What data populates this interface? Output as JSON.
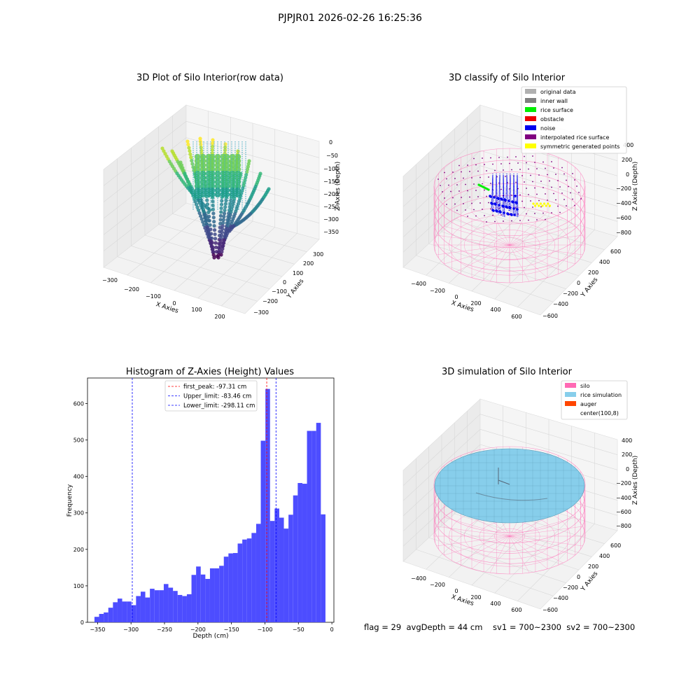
{
  "figure": {
    "suptitle": "PJPJR01 2026-02-26 16:25:36",
    "status_text": "flag = 29  avgDepth = 44 cm    sv1 = 700~2300  sv2 = 700~2300"
  },
  "chart_data": [
    {
      "type": "scatter",
      "panel": "top-left",
      "title": "3D Plot of Silo Interior(row data)",
      "xlabel": "X Axies",
      "ylabel": "Y Axies",
      "zlabel": "Z Axies (Depth)",
      "x_ticks": [
        "−300",
        "−200",
        "−100",
        "0",
        "100",
        "200"
      ],
      "y_ticks": [
        "300",
        "200",
        "100",
        "0",
        "−100",
        "−200",
        "−300"
      ],
      "z_ticks": [
        "0",
        "−50",
        "−100",
        "−150",
        "−200",
        "−250",
        "−300",
        "−350"
      ],
      "colormap": "viridis",
      "grid": true
    },
    {
      "type": "scatter",
      "panel": "top-right",
      "title": "3D classify of Silo Interior",
      "xlabel": "X Axies",
      "ylabel": "Y Axies",
      "zlabel": "Z Axies (Depth)",
      "x_ticks": [
        "−400",
        "−200",
        "0",
        "200",
        "400",
        "600"
      ],
      "y_ticks": [
        "600",
        "400",
        "200",
        "0",
        "−200",
        "−400",
        "−600"
      ],
      "z_ticks": [
        "400",
        "200",
        "0",
        "−200",
        "−400",
        "−600",
        "−800"
      ],
      "legend_position": "top-right",
      "legend": [
        {
          "label": "original data",
          "color": "#b0b0b0"
        },
        {
          "label": "inner wall",
          "color": "#808080"
        },
        {
          "label": "rice surface",
          "color": "#00ee00"
        },
        {
          "label": "obstacle",
          "color": "#ee0000"
        },
        {
          "label": "noise",
          "color": "#0000ee"
        },
        {
          "label": "interpolated rice surface",
          "color": "#800080"
        },
        {
          "label": "symmetric generated points",
          "color": "#ffff00"
        }
      ],
      "grid": true
    },
    {
      "type": "bar",
      "panel": "bottom-left",
      "title": "Histogram of Z-Axies (Height) Values",
      "xlabel": "Depth (cm)",
      "ylabel": "Frequency",
      "xlim": [
        -365,
        3
      ],
      "ylim": [
        0,
        670
      ],
      "x_ticks": [
        -350,
        -300,
        -250,
        -200,
        -150,
        -100,
        -50,
        0
      ],
      "y_ticks": [
        0,
        100,
        200,
        300,
        400,
        500,
        600
      ],
      "bar_color": "#4d4dff",
      "bin_start": -354.6,
      "bin_width": 6.9,
      "values": [
        15,
        23,
        27,
        40,
        55,
        65,
        57,
        57,
        47,
        72,
        84,
        68,
        92,
        88,
        88,
        105,
        95,
        86,
        75,
        72,
        77,
        130,
        153,
        131,
        119,
        148,
        148,
        155,
        180,
        189,
        190,
        216,
        227,
        230,
        245,
        270,
        498,
        640,
        278,
        312,
        287,
        257,
        295,
        348,
        382,
        380,
        525,
        525,
        547,
        296
      ],
      "vlines": [
        {
          "label": "first_peak: -97.31 cm",
          "x": -97.31,
          "color": "#ff0000"
        },
        {
          "label": "Upper_limit: -83.46 cm",
          "x": -83.46,
          "color": "#0000ff"
        },
        {
          "label": "Lower_limit: -298.11 cm",
          "x": -298.11,
          "color": "#0000ff"
        }
      ],
      "legend_position": "top-center"
    },
    {
      "type": "scatter",
      "panel": "bottom-right",
      "title": "3D simulation of Silo Interior",
      "xlabel": "X Axies",
      "ylabel": "Y Axies",
      "zlabel": "Z Axies (Depth)",
      "x_ticks": [
        "−400",
        "−200",
        "0",
        "200",
        "400",
        "600"
      ],
      "y_ticks": [
        "600",
        "400",
        "200",
        "0",
        "−200",
        "−400",
        "−600"
      ],
      "z_ticks": [
        "400",
        "200",
        "0",
        "−200",
        "−400",
        "−600",
        "−800"
      ],
      "legend_position": "top-right",
      "legend": [
        {
          "label": "silo",
          "color": "#ff69b4"
        },
        {
          "label": "rice simulation",
          "color": "#87ceeb"
        },
        {
          "label": "auger",
          "color": "#ff4500"
        },
        {
          "label": "center(100,8)",
          "color": "#ffffff"
        }
      ],
      "grid": true
    }
  ]
}
